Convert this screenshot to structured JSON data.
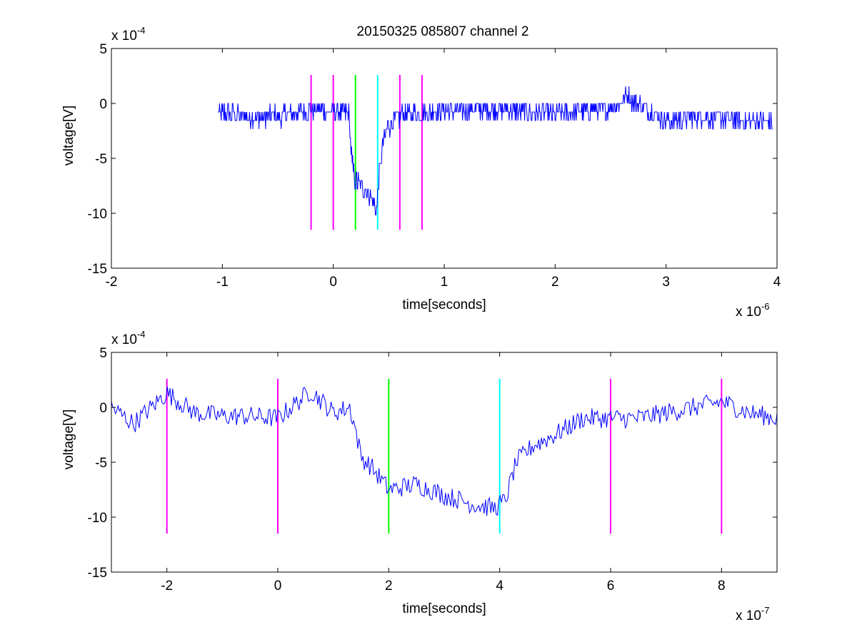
{
  "figure_title": "20150325 085807 channel 2",
  "colors": {
    "signal": "#0000ff",
    "marker_magenta": "#ff00ff",
    "marker_green": "#00ff00",
    "marker_cyan": "#00ffff",
    "axes": "#000000",
    "background": "#ffffff"
  },
  "chart_data": [
    {
      "type": "line",
      "title": "20150325 085807 channel 2",
      "xlabel": "time[seconds]",
      "ylabel": "voltage[V]",
      "x_exponent_label": "x 10",
      "x_exponent": "-6",
      "y_exponent_label": "x 10",
      "y_exponent": "-4",
      "x_unit_scale": 1e-06,
      "y_unit_scale": 0.0001,
      "xlim": [
        -2,
        4
      ],
      "ylim": [
        -15,
        5
      ],
      "xticks": [
        "-2",
        "-1",
        "0",
        "1",
        "2",
        "3",
        "4"
      ],
      "yticks": [
        "5",
        "0",
        "-5",
        "-10",
        "-15"
      ],
      "xtick_values": [
        -2,
        -1,
        0,
        1,
        2,
        3,
        4
      ],
      "ytick_values": [
        5,
        0,
        -5,
        -10,
        -15
      ],
      "grid": false,
      "legend": "none",
      "markers": [
        {
          "x": -0.2,
          "y_range": [
            -11.5,
            2.6
          ],
          "color": "magenta"
        },
        {
          "x": 0.0,
          "y_range": [
            -11.5,
            2.6
          ],
          "color": "magenta"
        },
        {
          "x": 0.2,
          "y_range": [
            -11.5,
            2.6
          ],
          "color": "green"
        },
        {
          "x": 0.4,
          "y_range": [
            -11.5,
            2.6
          ],
          "color": "cyan"
        },
        {
          "x": 0.6,
          "y_range": [
            -11.5,
            2.6
          ],
          "color": "magenta"
        },
        {
          "x": 0.8,
          "y_range": [
            -11.5,
            2.6
          ],
          "color": "magenta"
        }
      ],
      "series": [
        {
          "x_start": -1.04,
          "x_end": 3.96,
          "baseline_anchors": [
            [
              -1.04,
              -0.8
            ],
            [
              -0.7,
              -1.3
            ],
            [
              -0.4,
              -1.0
            ],
            [
              -0.2,
              -0.6
            ],
            [
              0.0,
              -0.8
            ],
            [
              0.14,
              -0.9
            ],
            [
              0.5,
              -1.2
            ],
            [
              1.0,
              -0.6
            ],
            [
              1.5,
              -0.5
            ],
            [
              2.0,
              -1.0
            ],
            [
              2.5,
              -0.4
            ],
            [
              2.65,
              0.6
            ],
            [
              3.0,
              -1.6
            ],
            [
              3.3,
              -1.2
            ],
            [
              3.6,
              -1.4
            ],
            [
              3.96,
              -1.8
            ]
          ],
          "dip_anchors": [
            [
              0.14,
              -0.9
            ],
            [
              0.17,
              -5.5
            ],
            [
              0.2,
              -7.0
            ],
            [
              0.26,
              -7.5
            ],
            [
              0.32,
              -8.3
            ],
            [
              0.37,
              -9.2
            ],
            [
              0.39,
              -9.8
            ],
            [
              0.41,
              -7.0
            ],
            [
              0.45,
              -3.5
            ],
            [
              0.5,
              -2.0
            ],
            [
              0.6,
              -1.3
            ]
          ],
          "noise_amplitude": 0.9
        }
      ]
    },
    {
      "type": "line",
      "title": "",
      "xlabel": "time[seconds]",
      "ylabel": "voltage[V]",
      "x_exponent_label": "x 10",
      "x_exponent": "-7",
      "y_exponent_label": "x 10",
      "y_exponent": "-4",
      "x_unit_scale": 1e-07,
      "y_unit_scale": 0.0001,
      "xlim": [
        -3,
        9
      ],
      "ylim": [
        -15,
        5
      ],
      "xticks": [
        "-2",
        "0",
        "2",
        "4",
        "6",
        "8"
      ],
      "yticks": [
        "5",
        "0",
        "-5",
        "-10",
        "-15"
      ],
      "xtick_values": [
        -2,
        0,
        2,
        4,
        6,
        8
      ],
      "ytick_values": [
        5,
        0,
        -5,
        -10,
        -15
      ],
      "grid": false,
      "legend": "none",
      "markers": [
        {
          "x": -2,
          "y_range": [
            -11.5,
            2.6
          ],
          "color": "magenta"
        },
        {
          "x": 0,
          "y_range": [
            -11.5,
            2.6
          ],
          "color": "magenta"
        },
        {
          "x": 2,
          "y_range": [
            -11.5,
            2.6
          ],
          "color": "green"
        },
        {
          "x": 4,
          "y_range": [
            -11.5,
            2.6
          ],
          "color": "cyan"
        },
        {
          "x": 6,
          "y_range": [
            -11.5,
            2.6
          ],
          "color": "magenta"
        },
        {
          "x": 8,
          "y_range": [
            -11.5,
            2.6
          ],
          "color": "magenta"
        }
      ],
      "series": [
        {
          "x_start": -3.0,
          "x_end": 9.0,
          "anchors": [
            [
              -3.0,
              0.0
            ],
            [
              -2.6,
              -1.5
            ],
            [
              -2.0,
              1.3
            ],
            [
              -1.5,
              -0.5
            ],
            [
              -1.0,
              -0.8
            ],
            [
              -0.5,
              -0.8
            ],
            [
              0.0,
              -1.0
            ],
            [
              0.6,
              1.5
            ],
            [
              1.0,
              -0.5
            ],
            [
              1.3,
              0.0
            ],
            [
              1.4,
              -2.0
            ],
            [
              1.5,
              -4.5
            ],
            [
              1.7,
              -5.5
            ],
            [
              2.0,
              -7.5
            ],
            [
              2.5,
              -7.0
            ],
            [
              3.0,
              -8.0
            ],
            [
              3.5,
              -8.8
            ],
            [
              3.9,
              -9.2
            ],
            [
              4.1,
              -8.5
            ],
            [
              4.3,
              -5.0
            ],
            [
              4.6,
              -3.5
            ],
            [
              5.0,
              -2.5
            ],
            [
              5.5,
              -1.0
            ],
            [
              6.0,
              -1.0
            ],
            [
              6.5,
              -1.0
            ],
            [
              7.0,
              -0.5
            ],
            [
              7.5,
              0.0
            ],
            [
              8.0,
              0.5
            ],
            [
              8.5,
              -0.5
            ],
            [
              9.0,
              -1.0
            ]
          ],
          "noise_amplitude": 0.9
        }
      ]
    }
  ]
}
